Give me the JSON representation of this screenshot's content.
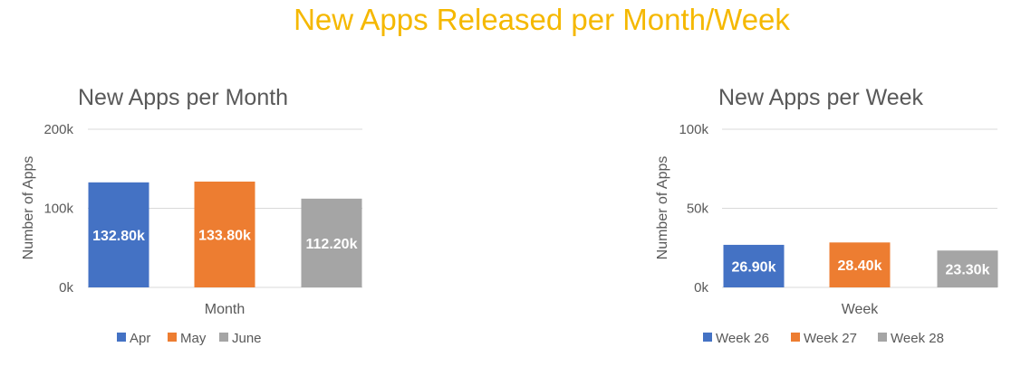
{
  "page_title": "New Apps Released per Month/Week",
  "chart_data": [
    {
      "type": "bar",
      "title": "New Apps per Month",
      "xlabel": "Month",
      "ylabel": "Number of Apps",
      "ylim": [
        0,
        200000
      ],
      "y_ticks": [
        {
          "value": 0,
          "label": "0k"
        },
        {
          "value": 100000,
          "label": "100k"
        },
        {
          "value": 200000,
          "label": "200k"
        }
      ],
      "grid": true,
      "legend_position": "bottom",
      "series": [
        {
          "name": "Apr",
          "value": 132800,
          "label": "132.80k",
          "color": "#4472C4"
        },
        {
          "name": "May",
          "value": 133800,
          "label": "133.80k",
          "color": "#ED7D31"
        },
        {
          "name": "June",
          "value": 112200,
          "label": "112.20k",
          "color": "#A5A5A5"
        }
      ]
    },
    {
      "type": "bar",
      "title": "New Apps per Week",
      "xlabel": "Week",
      "ylabel": "Number of Apps",
      "ylim": [
        0,
        100000
      ],
      "y_ticks": [
        {
          "value": 0,
          "label": "0k"
        },
        {
          "value": 50000,
          "label": "50k"
        },
        {
          "value": 100000,
          "label": "100k"
        }
      ],
      "grid": true,
      "legend_position": "bottom",
      "series": [
        {
          "name": "Week 26",
          "value": 26900,
          "label": "26.90k",
          "color": "#4472C4"
        },
        {
          "name": "Week 27",
          "value": 28400,
          "label": "28.40k",
          "color": "#ED7D31"
        },
        {
          "name": "Week 28",
          "value": 23300,
          "label": "23.30k",
          "color": "#A5A5A5"
        }
      ]
    }
  ]
}
